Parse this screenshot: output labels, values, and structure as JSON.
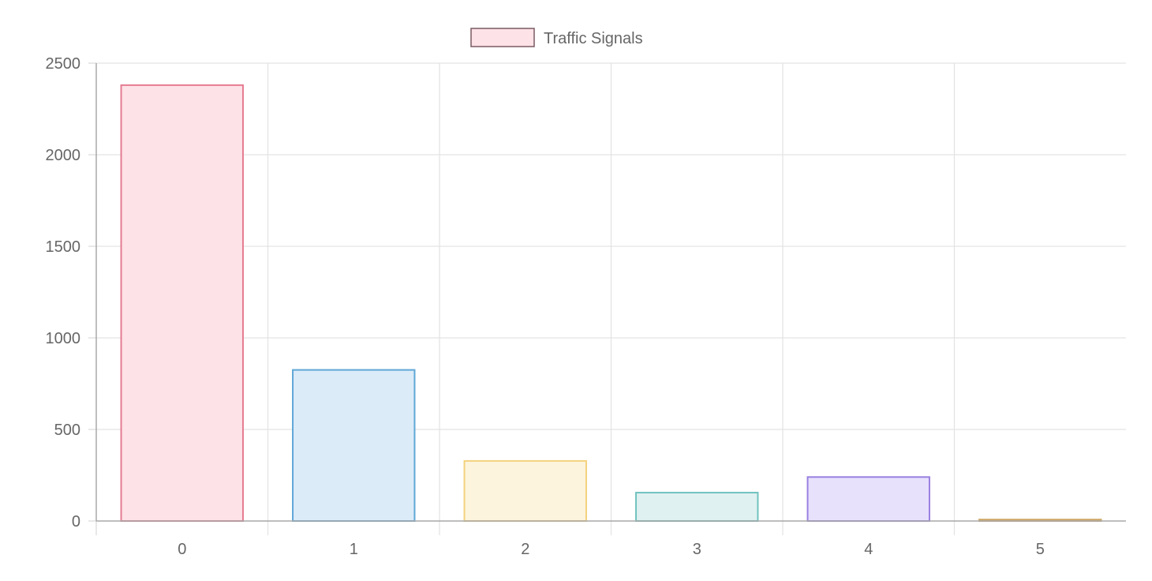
{
  "chart_data": {
    "type": "bar",
    "categories": [
      "0",
      "1",
      "2",
      "3",
      "4",
      "5"
    ],
    "series": [
      {
        "name": "Traffic Signals",
        "values": [
          2380,
          825,
          328,
          155,
          240,
          8
        ]
      }
    ],
    "bar_fill_colors": [
      "#fde2e7",
      "#dcebf8",
      "#fcf4dd",
      "#dff1f0",
      "#e8e1fc",
      "#f5ebd8"
    ],
    "bar_border_colors": [
      "#e57b91",
      "#5fa7d6",
      "#f4d37e",
      "#71c2bf",
      "#9a7fe0",
      "#cfa96a"
    ],
    "legend": {
      "position": "top",
      "fill_color": "#fde2e7",
      "border_color": "#7a5a62"
    },
    "ylim": [
      0,
      2500
    ],
    "yticks": [
      "0",
      "500",
      "1000",
      "1500",
      "2000",
      "2500"
    ],
    "ytick_values": [
      0,
      500,
      1000,
      1500,
      2000,
      2500
    ],
    "grid": true,
    "title": "",
    "xlabel": "",
    "ylabel": ""
  }
}
